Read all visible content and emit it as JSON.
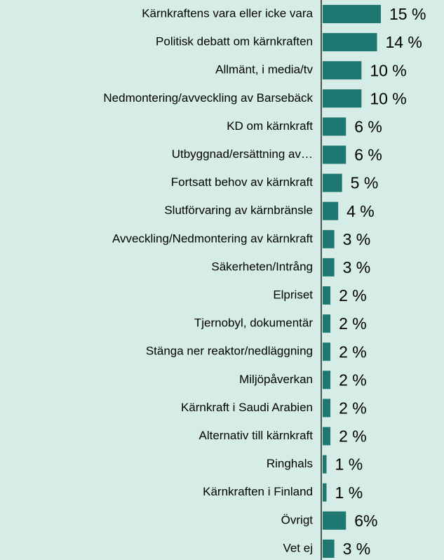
{
  "chart_data": {
    "type": "bar",
    "orientation": "horizontal",
    "categories": [
      "Kärnkraftens vara eller icke vara",
      "Politisk debatt om kärnkraften",
      "Allmänt, i media/tv",
      "Nedmontering/avveckling av Barsebäck",
      "KD om kärnkraft",
      "Utbyggnad/ersättning av…",
      "Fortsatt behov av kärnkraft",
      "Slutförvaring av kärnbränsle",
      "Avveckling/Nedmontering av kärnkraft",
      "Säkerheten/Intrång",
      "Elpriset",
      "Tjernobyl, dokumentär",
      "Stänga ner reaktor/nedläggning",
      "Miljöpåverkan",
      "Kärnkraft i Saudi Arabien",
      "Alternativ till kärnkraft",
      "Ringhals",
      "Kärnkraften i Finland",
      "Övrigt",
      "Vet ej"
    ],
    "values": [
      15,
      14,
      10,
      10,
      6,
      6,
      5,
      4,
      3,
      3,
      2,
      2,
      2,
      2,
      2,
      2,
      1,
      1,
      6,
      3
    ],
    "value_labels": [
      "15 %",
      "14 %",
      "10 %",
      "10 %",
      "6 %",
      "6 %",
      "5 %",
      "4 %",
      "3 %",
      "3 %",
      "2 %",
      "2 %",
      "2 %",
      "2 %",
      "2 %",
      "2 %",
      "1 %",
      "1 %",
      "6%",
      "3 %"
    ],
    "color": "#1f7771"
  }
}
